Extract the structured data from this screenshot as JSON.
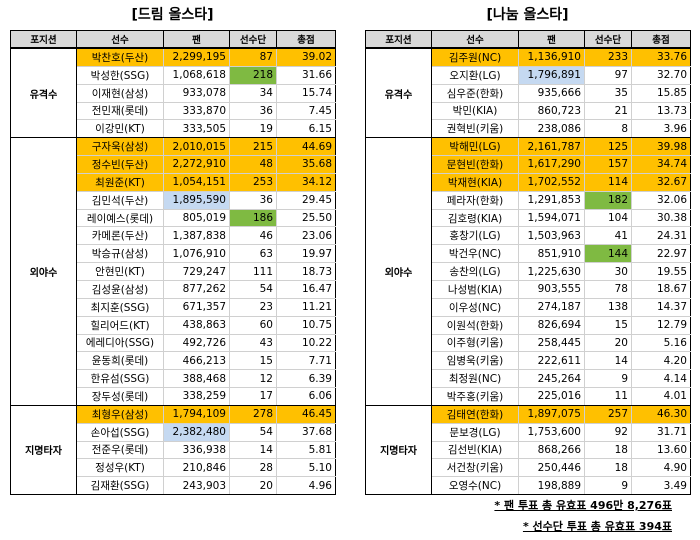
{
  "headers": [
    "포지션",
    "선수",
    "팬",
    "선수단",
    "총점"
  ],
  "colors": {
    "top3": "#ffc000",
    "fan_highlight": "#c5d9f1",
    "player_highlight": "#7fba42",
    "header_bg": "#d9d9d9"
  },
  "tables": [
    {
      "title": "[드림 올스타]",
      "groups": [
        {
          "position": "유격수",
          "rows": [
            {
              "name": "박찬호(두산)",
              "fan": "2,299,195",
              "players": "87",
              "total": "39.02",
              "top": true
            },
            {
              "name": "박성한(SSG)",
              "fan": "1,068,618",
              "players": "218",
              "total": "31.66",
              "hl": "players"
            },
            {
              "name": "이재현(삼성)",
              "fan": "933,078",
              "players": "34",
              "total": "15.74"
            },
            {
              "name": "전민재(롯데)",
              "fan": "333,870",
              "players": "36",
              "total": "7.45"
            },
            {
              "name": "이강민(KT)",
              "fan": "333,505",
              "players": "19",
              "total": "6.15"
            }
          ]
        },
        {
          "position": "외야수",
          "rows": [
            {
              "name": "구자욱(삼성)",
              "fan": "2,010,015",
              "players": "215",
              "total": "44.69",
              "top": true
            },
            {
              "name": "정수빈(두산)",
              "fan": "2,272,910",
              "players": "48",
              "total": "35.68",
              "top": true
            },
            {
              "name": "최원준(KT)",
              "fan": "1,054,151",
              "players": "253",
              "total": "34.12",
              "top": true
            },
            {
              "name": "김민석(두산)",
              "fan": "1,895,590",
              "players": "36",
              "total": "29.45",
              "hl": "fan"
            },
            {
              "name": "레이예스(롯데)",
              "fan": "805,019",
              "players": "186",
              "total": "25.50",
              "hl": "players"
            },
            {
              "name": "카메론(두산)",
              "fan": "1,387,838",
              "players": "46",
              "total": "23.06"
            },
            {
              "name": "박승규(삼성)",
              "fan": "1,076,910",
              "players": "63",
              "total": "19.97"
            },
            {
              "name": "안현민(KT)",
              "fan": "729,247",
              "players": "111",
              "total": "18.73"
            },
            {
              "name": "김성윤(삼성)",
              "fan": "877,262",
              "players": "54",
              "total": "16.47"
            },
            {
              "name": "최지훈(SSG)",
              "fan": "671,357",
              "players": "23",
              "total": "11.21"
            },
            {
              "name": "힐리어드(KT)",
              "fan": "438,863",
              "players": "60",
              "total": "10.75"
            },
            {
              "name": "에레디아(SSG)",
              "fan": "492,726",
              "players": "43",
              "total": "10.22"
            },
            {
              "name": "윤동희(롯데)",
              "fan": "466,213",
              "players": "15",
              "total": "7.71"
            },
            {
              "name": "한유섬(SSG)",
              "fan": "388,468",
              "players": "12",
              "total": "6.39"
            },
            {
              "name": "장두성(롯데)",
              "fan": "338,259",
              "players": "17",
              "total": "6.06"
            }
          ]
        },
        {
          "position": "지명타자",
          "rows": [
            {
              "name": "최형우(삼성)",
              "fan": "1,794,109",
              "players": "278",
              "total": "46.45",
              "top": true
            },
            {
              "name": "손아섭(SSG)",
              "fan": "2,382,480",
              "players": "54",
              "total": "37.68",
              "hl": "fan"
            },
            {
              "name": "전준우(롯데)",
              "fan": "336,938",
              "players": "14",
              "total": "5.81"
            },
            {
              "name": "정성우(KT)",
              "fan": "210,846",
              "players": "28",
              "total": "5.10"
            },
            {
              "name": "김재환(SSG)",
              "fan": "243,903",
              "players": "20",
              "total": "4.96"
            }
          ]
        }
      ]
    },
    {
      "title": "[나눔 올스타]",
      "groups": [
        {
          "position": "유격수",
          "rows": [
            {
              "name": "김주원(NC)",
              "fan": "1,136,910",
              "players": "233",
              "total": "33.76",
              "top": true
            },
            {
              "name": "오지환(LG)",
              "fan": "1,796,891",
              "players": "97",
              "total": "32.70",
              "hl": "fan"
            },
            {
              "name": "심우준(한화)",
              "fan": "935,666",
              "players": "35",
              "total": "15.85"
            },
            {
              "name": "박민(KIA)",
              "fan": "860,723",
              "players": "21",
              "total": "13.73"
            },
            {
              "name": "권혁빈(키움)",
              "fan": "238,086",
              "players": "8",
              "total": "3.96"
            }
          ]
        },
        {
          "position": "외야수",
          "rows": [
            {
              "name": "박해민(LG)",
              "fan": "2,161,787",
              "players": "125",
              "total": "39.98",
              "top": true
            },
            {
              "name": "문현빈(한화)",
              "fan": "1,617,290",
              "players": "157",
              "total": "34.74",
              "top": true
            },
            {
              "name": "박재현(KIA)",
              "fan": "1,702,552",
              "players": "114",
              "total": "32.67",
              "top": true
            },
            {
              "name": "페라자(한화)",
              "fan": "1,291,853",
              "players": "182",
              "total": "32.06",
              "hl": "players"
            },
            {
              "name": "김호령(KIA)",
              "fan": "1,594,071",
              "players": "104",
              "total": "30.38"
            },
            {
              "name": "홍창기(LG)",
              "fan": "1,503,963",
              "players": "41",
              "total": "24.31"
            },
            {
              "name": "박건우(NC)",
              "fan": "851,910",
              "players": "144",
              "total": "22.97",
              "hl": "players"
            },
            {
              "name": "송찬의(LG)",
              "fan": "1,225,630",
              "players": "30",
              "total": "19.55"
            },
            {
              "name": "나성범(KIA)",
              "fan": "903,555",
              "players": "78",
              "total": "18.67"
            },
            {
              "name": "이우성(NC)",
              "fan": "274,187",
              "players": "138",
              "total": "14.37"
            },
            {
              "name": "이원석(한화)",
              "fan": "826,694",
              "players": "15",
              "total": "12.79"
            },
            {
              "name": "이주형(키움)",
              "fan": "258,445",
              "players": "20",
              "total": "5.16"
            },
            {
              "name": "임병욱(키움)",
              "fan": "222,611",
              "players": "14",
              "total": "4.20"
            },
            {
              "name": "최정원(NC)",
              "fan": "245,264",
              "players": "9",
              "total": "4.14"
            },
            {
              "name": "박주홍(키움)",
              "fan": "225,016",
              "players": "11",
              "total": "4.01"
            }
          ]
        },
        {
          "position": "지명타자",
          "rows": [
            {
              "name": "김태연(한화)",
              "fan": "1,897,075",
              "players": "257",
              "total": "46.30",
              "top": true
            },
            {
              "name": "문보경(LG)",
              "fan": "1,753,600",
              "players": "92",
              "total": "31.71"
            },
            {
              "name": "김선빈(KIA)",
              "fan": "868,266",
              "players": "18",
              "total": "13.60"
            },
            {
              "name": "서건창(키움)",
              "fan": "250,446",
              "players": "18",
              "total": "4.90"
            },
            {
              "name": "오영수(NC)",
              "fan": "198,889",
              "players": "9",
              "total": "3.49"
            }
          ]
        }
      ]
    }
  ],
  "notes": [
    "* 팬 투표 총 유효표 496만 8,276표",
    "* 선수단 투표 총 유효표 394표"
  ]
}
